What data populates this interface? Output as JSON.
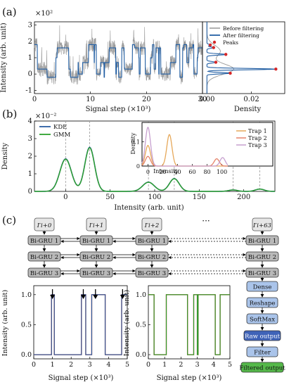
{
  "panels": {
    "a": "(a)",
    "b": "(b)",
    "c": "(c)"
  },
  "chart_data": [
    {
      "id": "a_trace",
      "type": "line",
      "xlabel": "Signal step (×10³)",
      "ylabel": "Intensity (arb. unit)",
      "multiplier": "×10²",
      "xlim": [
        0,
        30
      ],
      "ylim": [
        -1.2,
        3.2
      ],
      "xticks": [
        0,
        10,
        20,
        30
      ],
      "yticks": [
        -1,
        0,
        1,
        2,
        3
      ],
      "legend": {
        "placement": "top-right",
        "entries": [
          "Before filtering",
          "After filtering",
          "Peaks"
        ]
      },
      "series": [
        {
          "name": "Before filtering",
          "color": "#999999",
          "description_levels": [
            0,
            1,
            2,
            2.5,
            3
          ],
          "noise": 0.45
        },
        {
          "name": "After filtering",
          "color": "#2460a4",
          "levels": [
            -0.2,
            0,
            0.3,
            0.7,
            1,
            1.6,
            1.8
          ]
        }
      ]
    },
    {
      "id": "a_density",
      "type": "line",
      "xlabel": "Density",
      "xlim": [
        -0.002,
        0.035
      ],
      "xticks": [
        0.0,
        0.02
      ],
      "xtick_labels": [
        "0.00",
        "0.02"
      ],
      "ylim": [
        -1.2,
        3.2
      ],
      "series": [
        {
          "name": "Before filtering",
          "color": "#999999"
        },
        {
          "name": "After filtering",
          "color": "#2460a4"
        }
      ],
      "peaks": {
        "name": "Peaks",
        "color": "#d62728",
        "points": [
          [
            0.031,
            0.3
          ],
          [
            0.0105,
            0.05
          ],
          [
            0.0085,
            1.2
          ],
          [
            0.004,
            0.72
          ],
          [
            0.003,
            1.62
          ],
          [
            0.0015,
            1.78
          ]
        ]
      }
    },
    {
      "id": "b_density",
      "type": "line",
      "xlabel": "Intensity (arb. unit)",
      "ylabel": "Density",
      "multiplier": "×10⁻²",
      "xlim": [
        -35,
        235
      ],
      "ylim": [
        0,
        4
      ],
      "xticks": [
        0,
        50,
        100,
        150,
        200
      ],
      "yticks": [
        0,
        1,
        2,
        3,
        4
      ],
      "legend": {
        "placement": "top-left",
        "entries": [
          "KDE",
          "GMM"
        ]
      },
      "components": [
        {
          "mu": 0,
          "sigma": 6.5,
          "w": 1.83
        },
        {
          "mu": 27,
          "sigma": 5.5,
          "w": 2.48
        },
        {
          "mu": 93,
          "sigma": 6.5,
          "w": 0.52
        },
        {
          "mu": 122,
          "sigma": 5.5,
          "w": 0.72
        },
        {
          "mu": 188,
          "sigma": 5,
          "w": 0.08
        },
        {
          "mu": 218,
          "sigma": 5,
          "w": 0.13
        }
      ],
      "dashed_lines": [
        0,
        27,
        93,
        122,
        188,
        218
      ],
      "series": [
        {
          "name": "KDE",
          "color": "#2a5ea3"
        },
        {
          "name": "GMM",
          "color": "#2ca02c"
        }
      ]
    },
    {
      "id": "b_inset",
      "type": "line",
      "xlabel": "Intensity",
      "ylabel": "Density",
      "xlim": [
        -8,
        108
      ],
      "ylim": [
        0,
        0.18
      ],
      "xticks": [
        0,
        20,
        40,
        60,
        80,
        100
      ],
      "yticks": [
        0,
        0.1
      ],
      "legend": {
        "placement": "top-right",
        "entries": [
          "Trap 1",
          "Trap 2",
          "Trap 3"
        ]
      },
      "series": [
        {
          "name": "Trap 1",
          "color": "#e6a85a",
          "peaks": [
            [
              0,
              0.085
            ],
            [
              29,
              0.13
            ]
          ]
        },
        {
          "name": "Trap 2",
          "color": "#e5836a",
          "peaks": [
            [
              0,
              0.04
            ],
            [
              93,
              0.03
            ]
          ]
        },
        {
          "name": "Trap 3",
          "color": "#c7a0cf",
          "peaks": [
            [
              0,
              0.16
            ],
            [
              101,
              0.035
            ]
          ]
        }
      ]
    },
    {
      "id": "c_left",
      "type": "line",
      "xlabel": "Signal step (×10³)",
      "ylabel": "Intensity (arb. unit)",
      "xlim": [
        0,
        5
      ],
      "ylim": [
        -0.07,
        1.15
      ],
      "xticks": [
        0,
        1,
        2,
        3,
        4,
        5
      ],
      "yticks": [
        0.0,
        0.5,
        1.0
      ],
      "ytick_labels": [
        "0.0",
        "0.5",
        "1.0"
      ],
      "segments": [
        [
          0,
          0
        ],
        [
          0.95,
          1
        ],
        [
          1.1,
          0
        ],
        [
          2.55,
          1
        ],
        [
          2.78,
          0
        ],
        [
          3.1,
          1
        ],
        [
          3.82,
          0
        ],
        [
          4.7,
          1
        ],
        [
          5,
          1
        ]
      ],
      "arrows_x": [
        1.0,
        2.65,
        3.3,
        4.75
      ],
      "series": [
        {
          "name": "",
          "color": "#2a5ea3"
        },
        {
          "name": "",
          "color": "#c0392b"
        }
      ]
    },
    {
      "id": "c_right",
      "type": "line",
      "xlabel": "Signal step (×10³)",
      "ylabel": "Intensity (arb. unit)",
      "xlim": [
        0,
        5
      ],
      "ylim": [
        -0.07,
        1.15
      ],
      "xticks": [
        0,
        1,
        2,
        3,
        4,
        5
      ],
      "yticks": [
        0.0,
        0.5,
        1.0
      ],
      "ytick_labels": [
        "0.0",
        "0.5",
        "1.0"
      ],
      "segments": [
        [
          0,
          1
        ],
        [
          0.35,
          0
        ],
        [
          1.1,
          1
        ],
        [
          2.4,
          0
        ],
        [
          2.78,
          1
        ],
        [
          3.0,
          0
        ],
        [
          3.05,
          1
        ],
        [
          4.1,
          0
        ],
        [
          4.4,
          1
        ],
        [
          5,
          1
        ]
      ],
      "series": [
        {
          "name": "",
          "color": "#2ca02c"
        },
        {
          "name": "",
          "color": "#c0392b"
        }
      ]
    }
  ],
  "diagram": {
    "inputs": [
      "I′i+0",
      "I′i+1",
      "I′i+2",
      "I′i+63"
    ],
    "ellipsis": "···",
    "gru_labels": [
      "Bi-GRU 1",
      "Bi-GRU 2",
      "Bi-GRU 3"
    ],
    "pipeline": [
      "Dense",
      "Reshape",
      "SoftMax",
      "Raw output",
      "Filter",
      "Filtered output"
    ],
    "colors": {
      "gru": "#b9b9b9",
      "light_blue": "#aac4ea",
      "dark_blue": "#3f63b8",
      "green": "#55b84a",
      "gray_box": "#e6e6e6"
    }
  }
}
